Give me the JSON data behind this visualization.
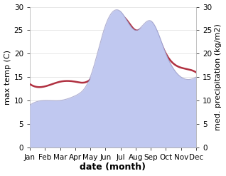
{
  "months": [
    "Jan",
    "Feb",
    "Mar",
    "Apr",
    "May",
    "Jun",
    "Jul",
    "Aug",
    "Sep",
    "Oct",
    "Nov",
    "Dec"
  ],
  "x": [
    1,
    2,
    3,
    4,
    5,
    6,
    7,
    8,
    9,
    10,
    11,
    12
  ],
  "temperature": [
    13.5,
    13.0,
    14.0,
    14.0,
    14.5,
    21.0,
    28.0,
    25.0,
    26.0,
    20.0,
    17.0,
    16.0
  ],
  "precipitation": [
    9.0,
    10.0,
    10.0,
    11.0,
    15.0,
    26.0,
    29.0,
    25.0,
    27.0,
    20.0,
    15.0,
    15.0
  ],
  "temp_color": "#b03040",
  "precip_fill_color": "#c0c8f0",
  "precip_line_color": "#9090c0",
  "ylim_left": [
    0,
    30
  ],
  "ylim_right": [
    0,
    30
  ],
  "xlabel": "date (month)",
  "ylabel_left": "max temp (C)",
  "ylabel_right": "med. precipitation (kg/m2)",
  "bg_color": "#ffffff",
  "label_fontsize": 8,
  "tick_fontsize": 7.5,
  "xlabel_fontsize": 9,
  "temp_linewidth": 1.8
}
